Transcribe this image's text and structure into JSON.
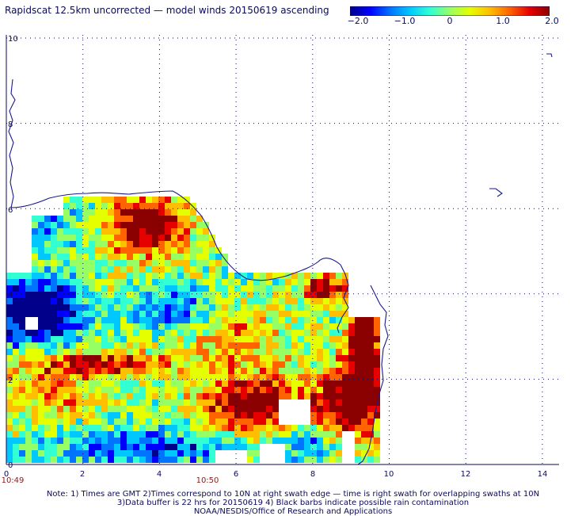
{
  "title": "Rapidscat 12.5km uncorrected — model winds 20150619 ascending",
  "colorbar": {
    "colors": [
      "#00008b",
      "#0000ff",
      "#0073ff",
      "#00c8ff",
      "#32ffd2",
      "#96ff64",
      "#e6ff00",
      "#ffbe00",
      "#ff6400",
      "#e60000",
      "#8b0000"
    ],
    "ticks": [
      "−2.0",
      "−1.0",
      "0",
      "1.0",
      "2.0"
    ],
    "tick_values": [
      -2.0,
      -1.0,
      0,
      1.0,
      2.0
    ],
    "range": [
      -2.0,
      2.0
    ]
  },
  "axes": {
    "x_ticks": [
      "0",
      "2",
      "4",
      "6",
      "8",
      "10",
      "12",
      "14"
    ],
    "y_ticks": [
      "0",
      "2",
      "4",
      "6",
      "8",
      "10"
    ],
    "time_labels": [
      "10:49",
      "10:50"
    ],
    "time_label_x": [
      0,
      5
    ]
  },
  "notes": {
    "line1": "Note: 1) Times are GMT 2)Times correspond to 10N at right swath edge — time is right swath for overlapping swaths at 10N",
    "line2": "3)Data buffer is 22 hrs for 20150619 4) Black barbs indicate possible rain contamination",
    "line3": "NOAA/NESDIS/Office of Research and Applications"
  }
}
